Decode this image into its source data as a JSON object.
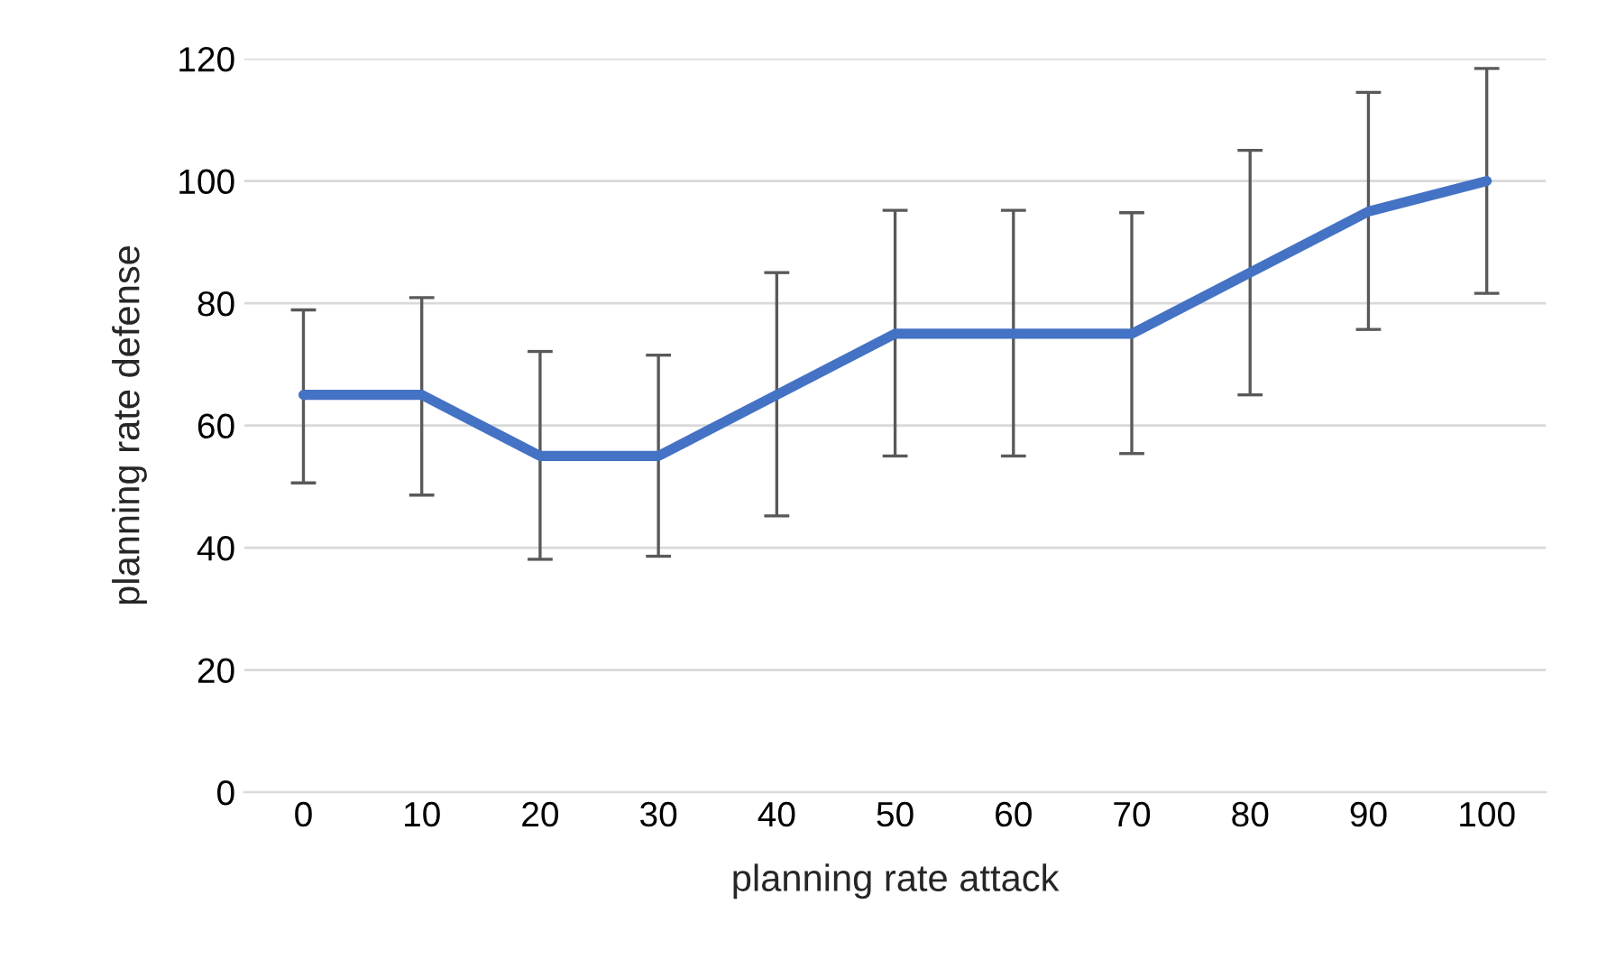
{
  "chart_data": {
    "type": "line",
    "xlabel": "planning rate attack",
    "ylabel": "planning rate defense",
    "categories": [
      "0",
      "10",
      "20",
      "30",
      "40",
      "50",
      "60",
      "70",
      "80",
      "90",
      "100"
    ],
    "series": [
      {
        "color": "#4472c4",
        "values": [
          65,
          65,
          55,
          55,
          65,
          75,
          75,
          75,
          85,
          95,
          100
        ],
        "errors": [
          [
            50.6,
            78.9
          ],
          [
            48.6,
            80.9
          ],
          [
            38.1,
            72.1
          ],
          [
            38.6,
            71.5
          ],
          [
            45.2,
            85.0
          ],
          [
            55.0,
            95.2
          ],
          [
            55.0,
            95.2
          ],
          [
            55.4,
            94.8
          ],
          [
            65.0,
            105.0
          ],
          [
            75.7,
            114.5
          ],
          [
            81.6,
            118.4
          ]
        ]
      }
    ],
    "ylim": [
      0,
      120
    ],
    "yticks": [
      0,
      20,
      40,
      60,
      80,
      100,
      120
    ],
    "grid": "y",
    "legend": false,
    "marker": "none",
    "line_style": "solid"
  }
}
